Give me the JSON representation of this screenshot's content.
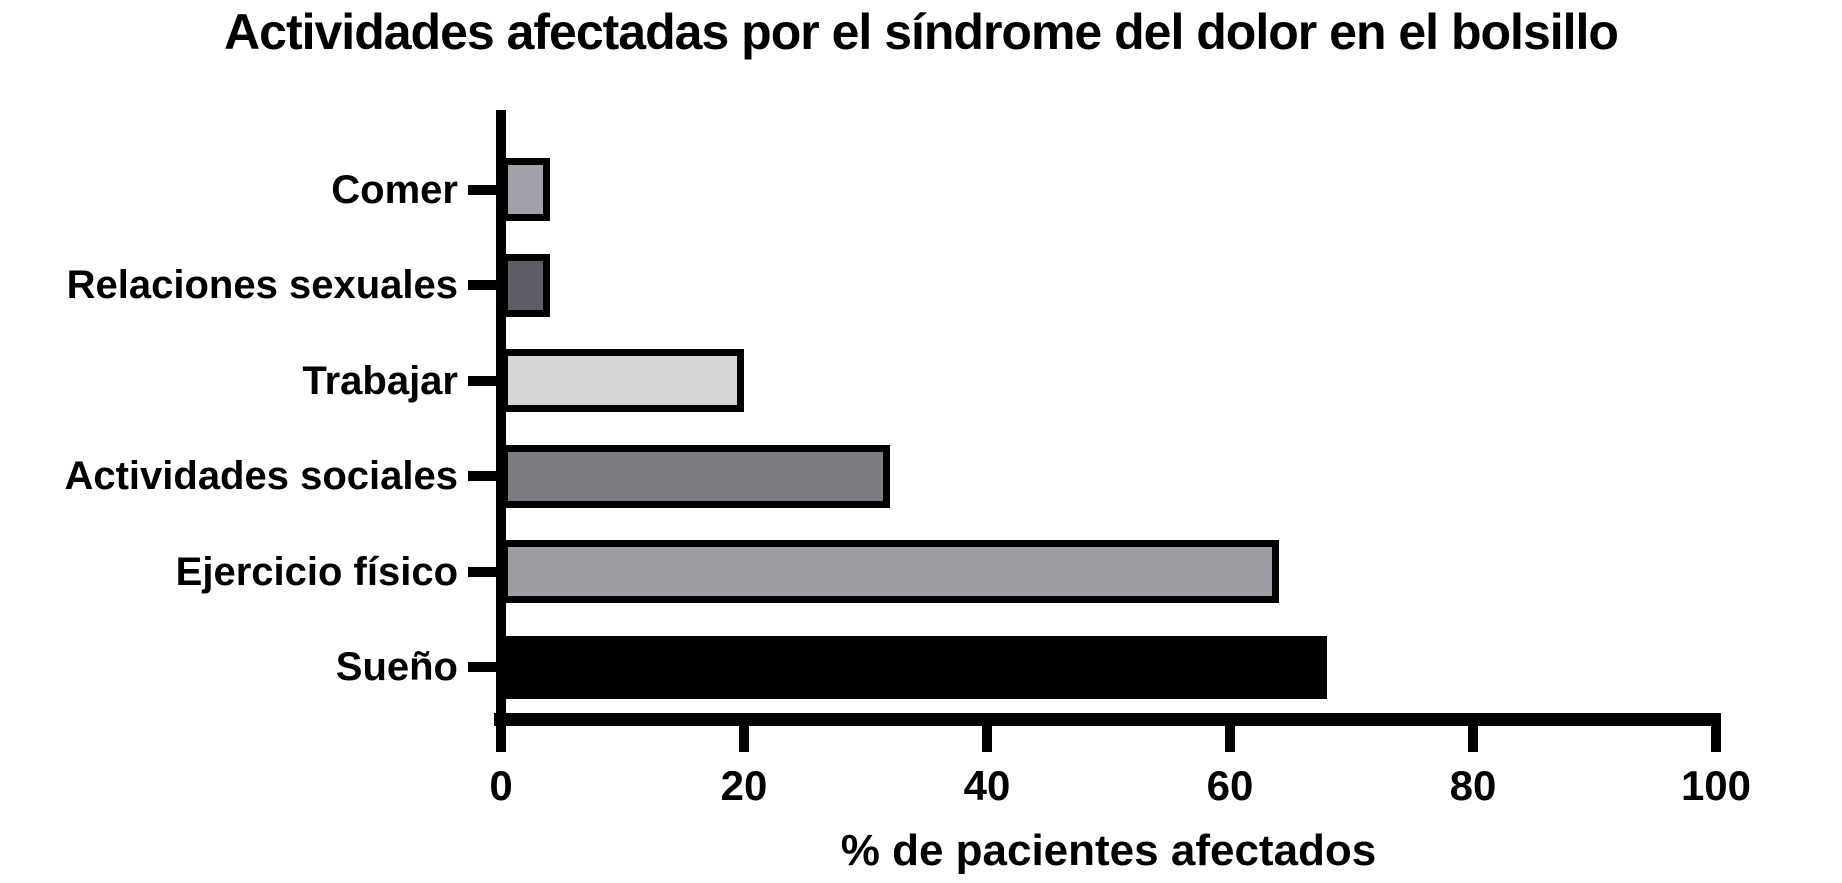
{
  "chart_data": {
    "type": "bar",
    "orientation": "horizontal",
    "title": "Actividades afectadas por el síndrome del dolor en el bolsillo",
    "xlabel": "% de pacientes afectados",
    "ylabel": "",
    "xlim": [
      0,
      100
    ],
    "x_ticks": [
      "0",
      "20",
      "40",
      "60",
      "80",
      "100"
    ],
    "grid": false,
    "legend": null,
    "categories": [
      "Comer",
      "Relaciones sexuales",
      "Trabajar",
      "Actividades sociales",
      "Ejercicio físico",
      "Sueño"
    ],
    "values": [
      4,
      4,
      20,
      32,
      64,
      68
    ],
    "bar_colors": [
      "#a1a1a9",
      "#5e5e66",
      "#d4d4d7",
      "#7b7b81",
      "#9c9ca3",
      "#000000"
    ],
    "bar_border_color": "#000000",
    "axis_color": "#000000"
  }
}
